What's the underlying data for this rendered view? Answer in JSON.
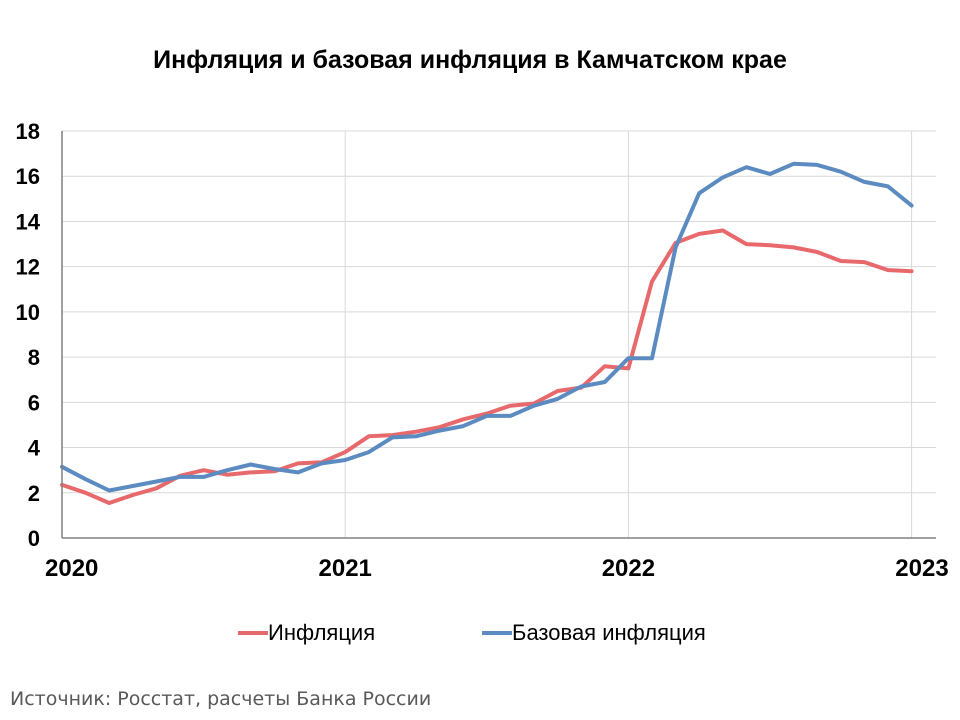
{
  "chart_data": {
    "type": "line",
    "title": "Инфляция и базовая инфляция в Камчатском крае",
    "xlabel": "",
    "ylabel": "",
    "ylim": [
      0,
      18
    ],
    "yticks": [
      0,
      2,
      4,
      6,
      8,
      10,
      12,
      14,
      16,
      18
    ],
    "xticks": [
      "2020",
      "2021",
      "2022",
      "2023"
    ],
    "grid": true,
    "legend_position": "bottom",
    "x": [
      "2020-01",
      "2020-02",
      "2020-03",
      "2020-04",
      "2020-05",
      "2020-06",
      "2020-07",
      "2020-08",
      "2020-09",
      "2020-10",
      "2020-11",
      "2020-12",
      "2021-01",
      "2021-02",
      "2021-03",
      "2021-04",
      "2021-05",
      "2021-06",
      "2021-07",
      "2021-08",
      "2021-09",
      "2021-10",
      "2021-11",
      "2021-12",
      "2022-01",
      "2022-02",
      "2022-03",
      "2022-04",
      "2022-05",
      "2022-06",
      "2022-07",
      "2022-08",
      "2022-09",
      "2022-10",
      "2022-11",
      "2022-12",
      "2023-01"
    ],
    "series": [
      {
        "name": "Инфляция",
        "color": "#e8696b",
        "values": [
          2.35,
          2.0,
          1.55,
          1.9,
          2.2,
          2.75,
          3.0,
          2.8,
          2.9,
          2.95,
          3.3,
          3.35,
          3.8,
          4.5,
          4.55,
          4.7,
          4.9,
          5.25,
          5.5,
          5.85,
          5.95,
          6.5,
          6.65,
          7.6,
          7.5,
          11.35,
          13.05,
          13.45,
          13.6,
          13.0,
          12.95,
          12.85,
          12.65,
          12.25,
          12.2,
          11.85,
          11.8
        ]
      },
      {
        "name": "Базовая инфляция",
        "color": "#5b8bc0",
        "values": [
          3.15,
          2.6,
          2.1,
          2.3,
          2.5,
          2.7,
          2.7,
          3.0,
          3.25,
          3.05,
          2.9,
          3.3,
          3.45,
          3.8,
          4.45,
          4.5,
          4.75,
          4.95,
          5.4,
          5.4,
          5.85,
          6.15,
          6.7,
          6.9,
          7.95,
          7.95,
          12.85,
          15.25,
          15.95,
          16.4,
          16.1,
          16.55,
          16.5,
          16.2,
          15.75,
          15.55,
          14.7
        ]
      }
    ]
  },
  "source": "Источник: Росстат, расчеты Банка России"
}
